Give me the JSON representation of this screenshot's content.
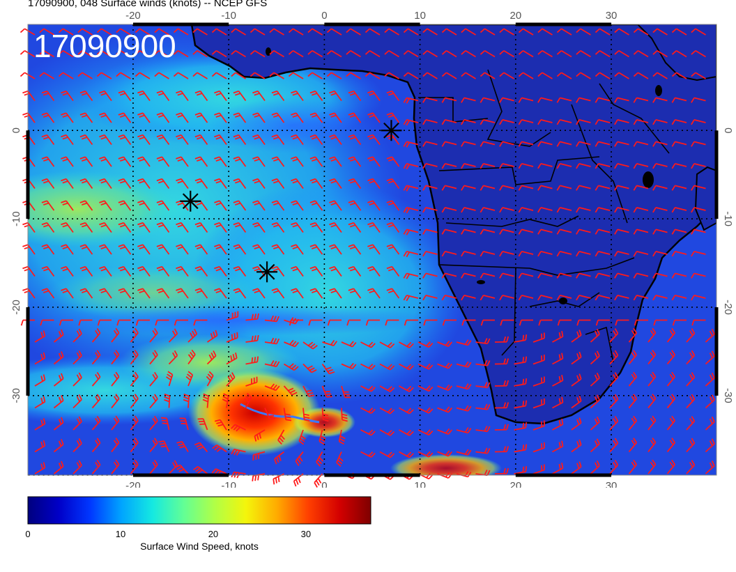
{
  "header": {
    "title": "17090900, 048 Surface winds (knots) -- NCEP GFS"
  },
  "map": {
    "stamp": "17090900",
    "lon_ticks": [
      "-20",
      "-10",
      "0",
      "10",
      "20",
      "30"
    ],
    "lat_ticks": [
      "0",
      "-10",
      "-20",
      "-30"
    ],
    "lon_range": [
      -31,
      41
    ],
    "lat_range": [
      -39,
      12
    ],
    "storm_markers": [
      {
        "lon": 7,
        "lat": 0
      },
      {
        "lon": -14,
        "lat": -8
      },
      {
        "lon": -6,
        "lat": -16
      }
    ],
    "colors": {
      "background": "#1e3ad0",
      "barbs": "#ff1a1a",
      "coast": "#000000",
      "graticule": "#000000"
    },
    "wind_field": "NCEP GFS surface wind speed, knots"
  },
  "colorbar": {
    "ticks": [
      "0",
      "10",
      "20",
      "30"
    ],
    "tick_values": [
      0,
      10,
      20,
      30
    ],
    "range": [
      0,
      37
    ],
    "label": "Surface Wind Speed, knots",
    "stops": [
      "#00007f",
      "#0000c8",
      "#0037ff",
      "#00a4ff",
      "#15e9e1",
      "#62ff95",
      "#b1ff46",
      "#f4f50b",
      "#ffaa00",
      "#ff3f00",
      "#d30000",
      "#7f0000"
    ]
  }
}
